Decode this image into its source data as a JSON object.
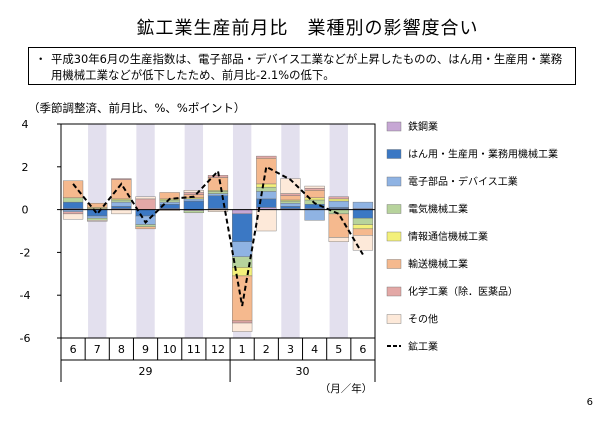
{
  "title": "鉱工業生産前月比　業種別の影響度合い",
  "note": {
    "bullet": "・",
    "text": "平成30年6月の生産指数は、電子部品・デバイス工業などが上昇したものの、はん用・生産用・業務用機械工業などが低下したため、前月比-2.1%の低下。"
  },
  "units_label": "（季節調整済、前月比、%、%ポイント）",
  "page_number": "6",
  "chart_data": {
    "type": "bar",
    "stacked": true,
    "categories": [
      "6",
      "7",
      "8",
      "9",
      "10",
      "11",
      "12",
      "1",
      "2",
      "3",
      "4",
      "5",
      "6"
    ],
    "year_labels": [
      {
        "label": "29",
        "from": 0,
        "to": 6
      },
      {
        "label": "30",
        "from": 7,
        "to": 12
      }
    ],
    "x_unit_label": "（月／年）",
    "ylim": [
      -6,
      4
    ],
    "yticks": [
      -6,
      -4,
      -2,
      0,
      2,
      4
    ],
    "shaded_months": [
      1,
      3,
      5,
      7,
      9,
      11
    ],
    "colors": {
      "shade": "#e3e0ee",
      "line": "#000000"
    },
    "series": [
      {
        "name": "鉄鋼業",
        "color": "#c6a7d4",
        "values": [
          0.05,
          0.05,
          0.05,
          0.0,
          0.05,
          -0.05,
          0.05,
          -0.2,
          0.1,
          0.05,
          0.05,
          0.05,
          0.05
        ]
      },
      {
        "name": "はん用・生産用・業務用機械工業",
        "color": "#3b78c4",
        "values": [
          0.3,
          -0.3,
          0.1,
          -0.3,
          0.2,
          0.4,
          0.6,
          -1.3,
          0.4,
          0.1,
          0.2,
          0.05,
          -0.4
        ]
      },
      {
        "name": "電子部品・デバイス工業",
        "color": "#8fb3e3",
        "values": [
          -0.1,
          -0.1,
          0.2,
          -0.4,
          0.1,
          0.1,
          0.1,
          -0.7,
          0.35,
          0.15,
          -0.5,
          0.3,
          0.3
        ]
      },
      {
        "name": "電気機械工業",
        "color": "#b7d39c",
        "values": [
          0.2,
          -0.1,
          0.1,
          -0.1,
          0.1,
          -0.1,
          0.1,
          -0.5,
          0.2,
          0.1,
          0.2,
          -0.2,
          -0.3
        ]
      },
      {
        "name": "情報通信機械工業",
        "color": "#f3f07a",
        "values": [
          0.0,
          0.05,
          0.05,
          0.0,
          0.05,
          0.05,
          0.05,
          -0.4,
          0.15,
          0.05,
          0.1,
          0.1,
          -0.2
        ]
      },
      {
        "name": "輸送機械工業",
        "color": "#f5b98e",
        "values": [
          0.8,
          0.2,
          0.9,
          -0.1,
          0.3,
          0.15,
          0.6,
          -2.1,
          1.2,
          0.2,
          0.35,
          -1.1,
          -0.3
        ]
      },
      {
        "name": "化学工業（除．医薬品）",
        "color": "#e3a8a6",
        "values": [
          -0.1,
          0.0,
          0.05,
          0.5,
          0.0,
          0.1,
          0.1,
          -0.1,
          0.1,
          0.1,
          0.1,
          0.1,
          0.0
        ]
      },
      {
        "name": "その他",
        "color": "#fde9d9",
        "values": [
          -0.25,
          -0.05,
          -0.2,
          0.1,
          -0.05,
          0.1,
          -0.1,
          -0.4,
          -1.0,
          0.7,
          0.1,
          -0.2,
          -0.7
        ]
      }
    ],
    "line_series": {
      "name": "鉱工業",
      "style": "dashed",
      "values": [
        1.2,
        -0.2,
        1.2,
        -0.6,
        0.5,
        0.6,
        1.8,
        -4.5,
        2.0,
        1.4,
        0.3,
        -0.2,
        -2.1
      ]
    },
    "legend_position": "right"
  }
}
